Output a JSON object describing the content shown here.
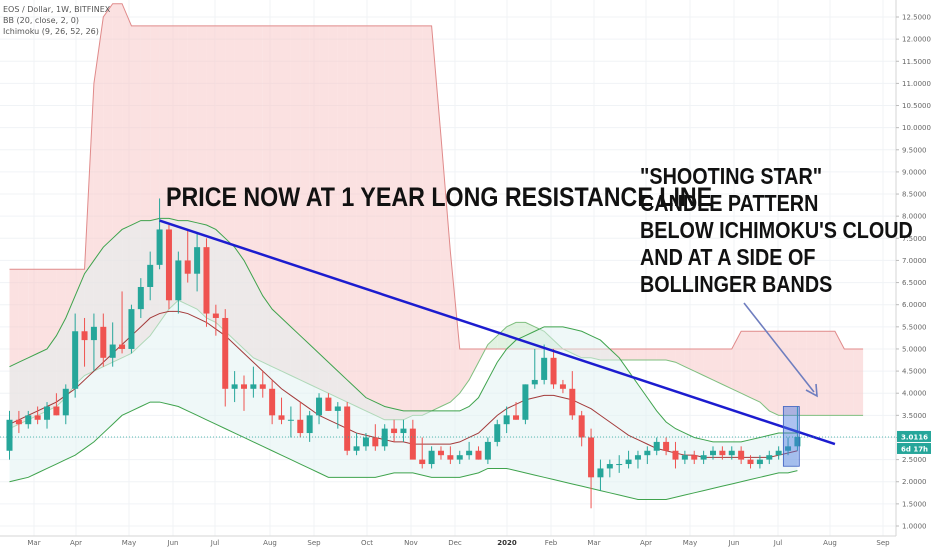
{
  "legend": {
    "symbol": "EOS / Dollar, 1W, BITFINEX",
    "bb": "BB (20, close, 2, 0)",
    "ichimoku": "Ichimoku (9, 26, 52, 26)"
  },
  "annotations": {
    "resistance": "PRICE NOW AT 1 YEAR LONG RESISTANCE LINE",
    "shooting_star": [
      "\"SHOOTING STAR\"",
      "CANDLE PATTERN",
      "BELOW ICHIMOKU'S CLOUD",
      "AND AT A SIDE OF",
      "BOLLINGER BANDS"
    ]
  },
  "price_tags": {
    "last_price": "3.0116",
    "countdown": "6d 17h"
  },
  "colors": {
    "up": "#26a69a",
    "down": "#ef5350",
    "trendline": "#1c1ccf",
    "cloud_bear": "#f8c9c9",
    "cloud_bull": "#c9e8c9",
    "bb_fill": "#dff2f2"
  },
  "chart_data": {
    "type": "candlestick",
    "title": "EOS / Dollar, 1W, BITFINEX",
    "x_tick_labels": [
      "Mar",
      "Apr",
      "May",
      "Jun",
      "Jul",
      "Aug",
      "Sep",
      "Oct",
      "Nov",
      "Dec",
      "2020",
      "Feb",
      "Mar",
      "Apr",
      "May",
      "Jun",
      "Jul",
      "Aug",
      "Sep"
    ],
    "y_tick_labels": [
      "12.5000",
      "12.0000",
      "11.5000",
      "11.0000",
      "10.5000",
      "10.0000",
      "9.5000",
      "9.0000",
      "8.5000",
      "8.0000",
      "7.5000",
      "7.0000",
      "6.5000",
      "6.0000",
      "5.5000",
      "5.0000",
      "4.5000",
      "4.0000",
      "3.5000",
      "3.0000",
      "2.5000",
      "2.0000",
      "1.5000",
      "1.0000"
    ],
    "ylim": [
      0.8,
      12.8
    ],
    "grid": true,
    "candles": [
      {
        "o": 2.7,
        "h": 3.6,
        "l": 2.5,
        "c": 3.4
      },
      {
        "o": 3.4,
        "h": 3.6,
        "l": 3.1,
        "c": 3.3
      },
      {
        "o": 3.3,
        "h": 3.6,
        "l": 3.2,
        "c": 3.5
      },
      {
        "o": 3.5,
        "h": 3.7,
        "l": 3.3,
        "c": 3.4
      },
      {
        "o": 3.4,
        "h": 3.8,
        "l": 3.2,
        "c": 3.7
      },
      {
        "o": 3.7,
        "h": 4.0,
        "l": 3.5,
        "c": 3.5
      },
      {
        "o": 3.5,
        "h": 4.2,
        "l": 3.3,
        "c": 4.1
      },
      {
        "o": 4.1,
        "h": 5.8,
        "l": 3.9,
        "c": 5.4
      },
      {
        "o": 5.4,
        "h": 5.7,
        "l": 4.6,
        "c": 5.2
      },
      {
        "o": 5.2,
        "h": 5.8,
        "l": 4.5,
        "c": 5.5
      },
      {
        "o": 5.5,
        "h": 5.8,
        "l": 4.6,
        "c": 4.8
      },
      {
        "o": 4.8,
        "h": 5.6,
        "l": 4.6,
        "c": 5.1
      },
      {
        "o": 5.1,
        "h": 6.3,
        "l": 4.9,
        "c": 5.0
      },
      {
        "o": 5.0,
        "h": 6.0,
        "l": 4.9,
        "c": 5.9
      },
      {
        "o": 5.9,
        "h": 6.6,
        "l": 5.7,
        "c": 6.4
      },
      {
        "o": 6.4,
        "h": 7.2,
        "l": 6.1,
        "c": 6.9
      },
      {
        "o": 6.9,
        "h": 8.4,
        "l": 6.8,
        "c": 7.7
      },
      {
        "o": 7.7,
        "h": 7.8,
        "l": 5.9,
        "c": 6.1
      },
      {
        "o": 6.1,
        "h": 7.2,
        "l": 5.8,
        "c": 7.0
      },
      {
        "o": 7.0,
        "h": 7.7,
        "l": 6.5,
        "c": 6.7
      },
      {
        "o": 6.7,
        "h": 7.6,
        "l": 6.3,
        "c": 7.3
      },
      {
        "o": 7.3,
        "h": 7.5,
        "l": 5.5,
        "c": 5.8
      },
      {
        "o": 5.8,
        "h": 6.0,
        "l": 5.3,
        "c": 5.7
      },
      {
        "o": 5.7,
        "h": 5.9,
        "l": 3.7,
        "c": 4.1
      },
      {
        "o": 4.1,
        "h": 4.5,
        "l": 3.8,
        "c": 4.2
      },
      {
        "o": 4.2,
        "h": 4.4,
        "l": 3.6,
        "c": 4.1
      },
      {
        "o": 4.1,
        "h": 4.6,
        "l": 3.9,
        "c": 4.2
      },
      {
        "o": 4.2,
        "h": 4.5,
        "l": 3.9,
        "c": 4.1
      },
      {
        "o": 4.1,
        "h": 4.3,
        "l": 3.3,
        "c": 3.5
      },
      {
        "o": 3.5,
        "h": 3.9,
        "l": 3.3,
        "c": 3.4
      },
      {
        "o": 3.4,
        "h": 3.7,
        "l": 3.0,
        "c": 3.4
      },
      {
        "o": 3.4,
        "h": 3.8,
        "l": 3.0,
        "c": 3.1
      },
      {
        "o": 3.1,
        "h": 3.6,
        "l": 2.9,
        "c": 3.5
      },
      {
        "o": 3.5,
        "h": 4.0,
        "l": 3.3,
        "c": 3.9
      },
      {
        "o": 3.9,
        "h": 4.0,
        "l": 3.6,
        "c": 3.6
      },
      {
        "o": 3.6,
        "h": 3.8,
        "l": 3.2,
        "c": 3.7
      },
      {
        "o": 3.7,
        "h": 3.8,
        "l": 2.6,
        "c": 2.7
      },
      {
        "o": 2.7,
        "h": 3.1,
        "l": 2.6,
        "c": 2.8
      },
      {
        "o": 2.8,
        "h": 3.1,
        "l": 2.7,
        "c": 3.0
      },
      {
        "o": 3.0,
        "h": 3.3,
        "l": 2.7,
        "c": 2.8
      },
      {
        "o": 2.8,
        "h": 3.3,
        "l": 2.7,
        "c": 3.2
      },
      {
        "o": 3.2,
        "h": 3.4,
        "l": 2.9,
        "c": 3.1
      },
      {
        "o": 3.1,
        "h": 3.4,
        "l": 2.9,
        "c": 3.2
      },
      {
        "o": 3.2,
        "h": 3.4,
        "l": 2.6,
        "c": 2.5
      },
      {
        "o": 2.5,
        "h": 3.0,
        "l": 2.3,
        "c": 2.4
      },
      {
        "o": 2.4,
        "h": 2.8,
        "l": 2.3,
        "c": 2.7
      },
      {
        "o": 2.7,
        "h": 2.8,
        "l": 2.5,
        "c": 2.6
      },
      {
        "o": 2.6,
        "h": 2.8,
        "l": 2.4,
        "c": 2.5
      },
      {
        "o": 2.5,
        "h": 2.7,
        "l": 2.4,
        "c": 2.6
      },
      {
        "o": 2.6,
        "h": 2.9,
        "l": 2.5,
        "c": 2.7
      },
      {
        "o": 2.7,
        "h": 2.8,
        "l": 2.5,
        "c": 2.5
      },
      {
        "o": 2.5,
        "h": 3.0,
        "l": 2.4,
        "c": 2.9
      },
      {
        "o": 2.9,
        "h": 3.4,
        "l": 2.8,
        "c": 3.3
      },
      {
        "o": 3.3,
        "h": 3.7,
        "l": 3.1,
        "c": 3.5
      },
      {
        "o": 3.5,
        "h": 3.8,
        "l": 3.4,
        "c": 3.4
      },
      {
        "o": 3.4,
        "h": 4.2,
        "l": 3.3,
        "c": 4.2
      },
      {
        "o": 4.2,
        "h": 5.0,
        "l": 4.1,
        "c": 4.3
      },
      {
        "o": 4.3,
        "h": 5.1,
        "l": 4.2,
        "c": 4.8
      },
      {
        "o": 4.8,
        "h": 5.0,
        "l": 4.1,
        "c": 4.2
      },
      {
        "o": 4.2,
        "h": 4.3,
        "l": 4.0,
        "c": 4.1
      },
      {
        "o": 4.1,
        "h": 4.5,
        "l": 3.4,
        "c": 3.5
      },
      {
        "o": 3.5,
        "h": 3.6,
        "l": 2.8,
        "c": 3.0
      },
      {
        "o": 3.0,
        "h": 3.2,
        "l": 1.4,
        "c": 2.1
      },
      {
        "o": 2.1,
        "h": 2.5,
        "l": 1.8,
        "c": 2.3
      },
      {
        "o": 2.3,
        "h": 2.5,
        "l": 2.1,
        "c": 2.4
      },
      {
        "o": 2.4,
        "h": 2.6,
        "l": 2.2,
        "c": 2.4
      },
      {
        "o": 2.4,
        "h": 2.7,
        "l": 2.3,
        "c": 2.5
      },
      {
        "o": 2.5,
        "h": 2.7,
        "l": 2.3,
        "c": 2.6
      },
      {
        "o": 2.6,
        "h": 2.8,
        "l": 2.4,
        "c": 2.7
      },
      {
        "o": 2.7,
        "h": 3.0,
        "l": 2.6,
        "c": 2.9
      },
      {
        "o": 2.9,
        "h": 3.0,
        "l": 2.6,
        "c": 2.7
      },
      {
        "o": 2.7,
        "h": 2.9,
        "l": 2.3,
        "c": 2.5
      },
      {
        "o": 2.5,
        "h": 2.7,
        "l": 2.4,
        "c": 2.6
      },
      {
        "o": 2.6,
        "h": 2.7,
        "l": 2.4,
        "c": 2.5
      },
      {
        "o": 2.5,
        "h": 2.7,
        "l": 2.4,
        "c": 2.6
      },
      {
        "o": 2.6,
        "h": 2.8,
        "l": 2.5,
        "c": 2.7
      },
      {
        "o": 2.7,
        "h": 2.8,
        "l": 2.5,
        "c": 2.6
      },
      {
        "o": 2.6,
        "h": 2.8,
        "l": 2.5,
        "c": 2.7
      },
      {
        "o": 2.7,
        "h": 2.8,
        "l": 2.4,
        "c": 2.5
      },
      {
        "o": 2.5,
        "h": 2.6,
        "l": 2.3,
        "c": 2.4
      },
      {
        "o": 2.4,
        "h": 2.6,
        "l": 2.3,
        "c": 2.5
      },
      {
        "o": 2.5,
        "h": 2.7,
        "l": 2.4,
        "c": 2.6
      },
      {
        "o": 2.6,
        "h": 2.8,
        "l": 2.5,
        "c": 2.7
      },
      {
        "o": 2.7,
        "h": 3.0,
        "l": 2.6,
        "c": 2.8
      },
      {
        "o": 2.8,
        "h": 3.7,
        "l": 2.7,
        "c": 3.0116
      }
    ],
    "trendline": {
      "from": {
        "index": 16,
        "value": 7.9
      },
      "to": {
        "index": 88,
        "value": 2.85
      }
    },
    "highlight_box": {
      "from_index": 82.5,
      "to_index": 84.2,
      "low": 2.35,
      "high": 3.7
    },
    "cloud": {
      "span_a": [
        3.2,
        3.3,
        3.4,
        3.5,
        3.6,
        3.7,
        3.9,
        4.2,
        4.4,
        4.5,
        4.6,
        4.7,
        4.8,
        4.9,
        5.1,
        5.3,
        5.6,
        5.9,
        6.1,
        6.0,
        5.9,
        5.7,
        5.6,
        5.4,
        5.2,
        5.0,
        4.8,
        4.7,
        4.6,
        4.5,
        4.4,
        4.3,
        4.2,
        4.1,
        4.0,
        3.9,
        3.8,
        3.7,
        3.6,
        3.5,
        3.4,
        3.4,
        3.4,
        3.5,
        3.5,
        3.6,
        3.7,
        3.8,
        4.0,
        4.3,
        4.7,
        5.1,
        5.3,
        5.5,
        5.6,
        5.6,
        5.5,
        5.4,
        5.2,
        5.0,
        4.9,
        4.8,
        4.8,
        4.75,
        4.75,
        4.75,
        4.75,
        4.75,
        4.75,
        4.75,
        4.75,
        4.7,
        4.6,
        4.5,
        4.4,
        4.3,
        4.2,
        4.1,
        4.0,
        3.9,
        3.8,
        3.6,
        3.5,
        3.5,
        3.5,
        3.5,
        3.5,
        3.5,
        3.5,
        3.5,
        3.5,
        3.5
      ],
      "span_b": [
        6.8,
        6.8,
        6.8,
        6.8,
        6.8,
        6.8,
        6.8,
        6.8,
        6.8,
        11.0,
        12.5,
        12.8,
        12.8,
        12.3,
        12.3,
        12.3,
        12.3,
        12.3,
        12.3,
        12.3,
        12.3,
        12.3,
        12.3,
        12.3,
        12.3,
        12.3,
        12.3,
        12.3,
        12.3,
        12.3,
        12.3,
        12.3,
        12.3,
        12.3,
        12.3,
        12.3,
        12.3,
        12.3,
        12.3,
        12.3,
        12.3,
        12.3,
        12.3,
        12.3,
        12.3,
        12.3,
        9.8,
        7.2,
        5.0,
        5.0,
        5.0,
        5.0,
        5.0,
        5.0,
        5.0,
        5.0,
        5.0,
        5.0,
        5.0,
        5.0,
        5.0,
        5.0,
        5.0,
        5.0,
        5.0,
        5.0,
        5.0,
        5.0,
        5.0,
        5.0,
        5.0,
        5.0,
        5.0,
        5.0,
        5.0,
        5.0,
        5.0,
        5.0,
        5.4,
        5.4,
        5.4,
        5.4,
        5.4,
        5.4,
        5.4,
        5.4,
        5.4,
        5.4,
        5.4,
        5.0,
        5.0,
        5.0
      ]
    },
    "bollinger": {
      "upper": [
        4.6,
        4.7,
        4.8,
        4.9,
        5.0,
        5.3,
        5.7,
        6.2,
        6.7,
        7.0,
        7.3,
        7.5,
        7.7,
        7.8,
        7.9,
        7.9,
        7.95,
        7.95,
        7.9,
        7.9,
        7.85,
        7.8,
        7.7,
        7.5,
        7.3,
        7.0,
        6.6,
        6.2,
        5.9,
        5.7,
        5.5,
        5.3,
        5.1,
        4.9,
        4.7,
        4.5,
        4.3,
        4.1,
        3.9,
        3.8,
        3.7,
        3.65,
        3.6,
        3.6,
        3.6,
        3.6,
        3.6,
        3.6,
        3.6,
        3.7,
        3.9,
        4.3,
        4.7,
        5.0,
        5.2,
        5.3,
        5.4,
        5.5,
        5.5,
        5.5,
        5.45,
        5.4,
        5.3,
        5.2,
        5.0,
        4.8,
        4.5,
        4.2,
        3.9,
        3.6,
        3.35,
        3.2,
        3.1,
        3.0,
        2.95,
        2.9,
        2.9,
        2.9,
        2.9,
        2.95,
        3.0,
        3.05,
        3.1,
        3.1,
        3.1
      ],
      "basis": [
        3.3,
        3.4,
        3.5,
        3.6,
        3.7,
        3.8,
        3.95,
        4.1,
        4.3,
        4.5,
        4.7,
        4.9,
        5.1,
        5.3,
        5.5,
        5.7,
        5.8,
        5.85,
        5.85,
        5.8,
        5.7,
        5.6,
        5.45,
        5.3,
        5.1,
        4.9,
        4.7,
        4.5,
        4.3,
        4.1,
        3.95,
        3.8,
        3.65,
        3.5,
        3.4,
        3.3,
        3.2,
        3.1,
        3.05,
        3.0,
        2.95,
        2.9,
        2.9,
        2.85,
        2.85,
        2.85,
        2.85,
        2.85,
        2.9,
        3.0,
        3.1,
        3.3,
        3.5,
        3.65,
        3.75,
        3.85,
        3.9,
        3.95,
        3.95,
        3.9,
        3.85,
        3.75,
        3.65,
        3.5,
        3.35,
        3.2,
        3.05,
        2.95,
        2.85,
        2.75,
        2.7,
        2.65,
        2.6,
        2.6,
        2.55,
        2.55,
        2.55,
        2.55,
        2.55,
        2.55,
        2.55,
        2.55,
        2.6,
        2.65,
        2.7
      ],
      "lower": [
        2.0,
        2.05,
        2.1,
        2.2,
        2.3,
        2.4,
        2.5,
        2.6,
        2.75,
        2.9,
        3.1,
        3.3,
        3.5,
        3.6,
        3.7,
        3.8,
        3.8,
        3.75,
        3.7,
        3.6,
        3.5,
        3.4,
        3.3,
        3.2,
        3.1,
        3.0,
        2.9,
        2.8,
        2.7,
        2.6,
        2.5,
        2.4,
        2.3,
        2.2,
        2.1,
        2.1,
        2.1,
        2.1,
        2.1,
        2.1,
        2.15,
        2.2,
        2.2,
        2.2,
        2.15,
        2.1,
        2.1,
        2.1,
        2.1,
        2.15,
        2.2,
        2.3,
        2.3,
        2.3,
        2.25,
        2.2,
        2.15,
        2.1,
        2.05,
        2.0,
        1.95,
        1.9,
        1.85,
        1.8,
        1.75,
        1.7,
        1.65,
        1.6,
        1.6,
        1.6,
        1.6,
        1.65,
        1.7,
        1.75,
        1.8,
        1.85,
        1.9,
        1.95,
        2.0,
        2.05,
        2.1,
        2.15,
        2.2,
        2.2,
        2.25
      ]
    }
  }
}
